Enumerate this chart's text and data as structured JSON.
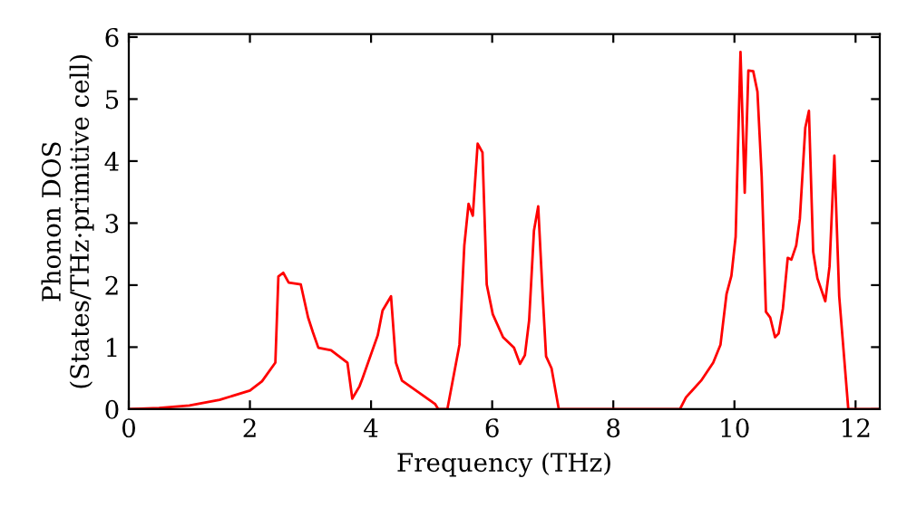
{
  "chart_data": {
    "type": "line",
    "xlabel": "Frequency (THz)",
    "ylabel": "Phonon DOS\n(States/THz·primitive cell)",
    "x": [
      0,
      0.5,
      1,
      1.5,
      2,
      2.2,
      2.42,
      2.47,
      2.55,
      2.64,
      2.84,
      2.96,
      3.04,
      3.13,
      3.34,
      3.61,
      3.69,
      3.81,
      3.86,
      4.11,
      4.19,
      4.33,
      4.41,
      4.51,
      5.06,
      5.11,
      5.26,
      5.46,
      5.54,
      5.61,
      5.68,
      5.76,
      5.84,
      5.91,
      6.01,
      6.18,
      6.36,
      6.46,
      6.54,
      6.61,
      6.69,
      6.76,
      6.83,
      6.89,
      6.98,
      7.1,
      9.1,
      9.2,
      9.45,
      9.65,
      9.77,
      9.87,
      9.95,
      10.02,
      10.1,
      10.17,
      10.23,
      10.31,
      10.38,
      10.45,
      10.52,
      10.59,
      10.67,
      10.73,
      10.8,
      10.88,
      10.94,
      11.02,
      11.08,
      11.17,
      11.23,
      11.3,
      11.37,
      11.5,
      11.57,
      11.65,
      11.73,
      11.88,
      12.4
    ],
    "series": [
      {
        "color": "#ff0000",
        "values": [
          0,
          0.02,
          0.06,
          0.15,
          0.3,
          0.45,
          0.75,
          2.14,
          2.2,
          2.04,
          2.01,
          1.48,
          1.24,
          0.99,
          0.95,
          0.75,
          0.17,
          0.37,
          0.5,
          1.19,
          1.59,
          1.82,
          0.75,
          0.46,
          0.08,
          0,
          0,
          1.04,
          2.64,
          3.31,
          3.12,
          4.28,
          4.14,
          2.01,
          1.53,
          1.16,
          0.99,
          0.73,
          0.87,
          1.43,
          2.88,
          3.27,
          1.91,
          0.85,
          0.66,
          0,
          0,
          0.19,
          0.46,
          0.75,
          1.04,
          1.86,
          2.15,
          2.78,
          5.76,
          3.49,
          5.46,
          5.45,
          5.12,
          3.75,
          1.57,
          1.48,
          1.16,
          1.22,
          1.62,
          2.44,
          2.41,
          2.64,
          3.07,
          4.54,
          4.81,
          2.54,
          2.11,
          1.74,
          2.3,
          4.09,
          1.82,
          0,
          0
        ]
      }
    ],
    "xlim": [
      0,
      12.4
    ],
    "ylim": [
      0,
      6.05
    ],
    "xticks": [
      0,
      2,
      4,
      6,
      8,
      10,
      12
    ],
    "yticks": [
      0,
      1,
      2,
      3,
      4,
      5,
      6
    ],
    "grid": false,
    "legend": false,
    "marker": "none",
    "line_style": "solid"
  }
}
